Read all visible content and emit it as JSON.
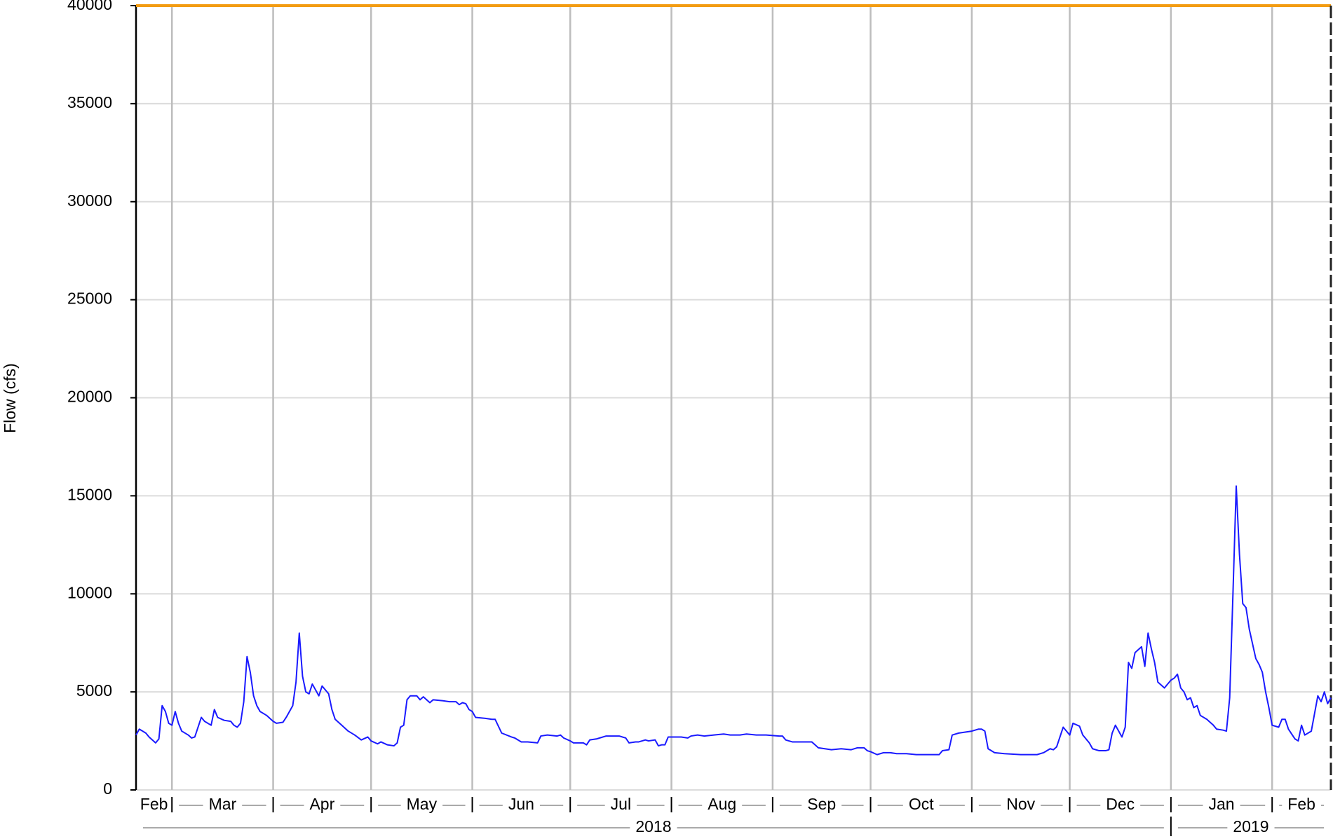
{
  "chart_data": {
    "type": "line",
    "ylabel": "Flow (cfs)",
    "xlim": [
      48,
      414
    ],
    "ylim": [
      0,
      40000
    ],
    "yticks": [
      0,
      5000,
      10000,
      15000,
      20000,
      25000,
      30000,
      35000,
      40000
    ],
    "xticks": [
      {
        "value": 31,
        "label": "Feb"
      },
      {
        "value": 59,
        "label": "Mar"
      },
      {
        "value": 90,
        "label": "Apr"
      },
      {
        "value": 120,
        "label": "May"
      },
      {
        "value": 151,
        "label": "Jun"
      },
      {
        "value": 181,
        "label": "Jul"
      },
      {
        "value": 212,
        "label": "Aug"
      },
      {
        "value": 243,
        "label": "Sep"
      },
      {
        "value": 273,
        "label": "Oct"
      },
      {
        "value": 304,
        "label": "Nov"
      },
      {
        "value": 334,
        "label": "Dec"
      },
      {
        "value": 365,
        "label": "Jan"
      },
      {
        "value": 396,
        "label": "Feb"
      }
    ],
    "years": [
      {
        "value": 0,
        "label": "2018"
      },
      {
        "value": 365,
        "label": "2019"
      }
    ],
    "grid": true,
    "reference_line": {
      "value": 40000,
      "color": "#f39c12"
    },
    "marker_x": 414,
    "series": [
      {
        "name": "Flow",
        "color": "#1a1aff",
        "x": [
          48,
          49,
          51,
          52,
          54,
          55,
          56,
          57,
          58,
          59,
          60,
          61,
          62,
          64,
          65,
          66,
          68,
          69,
          71,
          72,
          73,
          75,
          77,
          78,
          79,
          80,
          81,
          82,
          83,
          84,
          85,
          86,
          88,
          90,
          91,
          93,
          94,
          96,
          97,
          98,
          99,
          100,
          101,
          102,
          104,
          105,
          107,
          108,
          109,
          111,
          113,
          115,
          117,
          119,
          120,
          122,
          123,
          125,
          127,
          128,
          129,
          130,
          131,
          132,
          134,
          135,
          136,
          138,
          139,
          142,
          144,
          146,
          147,
          148,
          149,
          150,
          151,
          152,
          155,
          157,
          158,
          160,
          163,
          164,
          166,
          168,
          171,
          172,
          174,
          177,
          178,
          179,
          181,
          182,
          185,
          186,
          187,
          189,
          190,
          192,
          194,
          196,
          198,
          199,
          201,
          202,
          204,
          205,
          207,
          208,
          209,
          210,
          211,
          213,
          215,
          217,
          218,
          220,
          222,
          225,
          228,
          230,
          233,
          235,
          238,
          241,
          245,
          246,
          247,
          249,
          251,
          254,
          255,
          257,
          259,
          261,
          264,
          267,
          269,
          271,
          272,
          273,
          275,
          277,
          279,
          281,
          284,
          287,
          291,
          294,
          295,
          297,
          298,
          300,
          302,
          304,
          306,
          307,
          308,
          309,
          311,
          314,
          319,
          324,
          326,
          328,
          329,
          330,
          332,
          334,
          335,
          337,
          338,
          340,
          341,
          343,
          345,
          346,
          347,
          348,
          349,
          350,
          351,
          352,
          353,
          354,
          356,
          357,
          358,
          359,
          360,
          361,
          363,
          365,
          366,
          367,
          368,
          369,
          370,
          371,
          372,
          373,
          374,
          376,
          378,
          379,
          381,
          382,
          383,
          384,
          385,
          386,
          387,
          388,
          389,
          391,
          392,
          393,
          394,
          395,
          396,
          398,
          399,
          400,
          401,
          403,
          404,
          405,
          406,
          408,
          409,
          410,
          411,
          412,
          413,
          414
        ],
        "values": [
          2800,
          3100,
          2900,
          2700,
          2400,
          2600,
          4300,
          4000,
          3400,
          3300,
          4000,
          3400,
          3000,
          2800,
          2650,
          2700,
          3700,
          3500,
          3300,
          4100,
          3700,
          3550,
          3500,
          3300,
          3200,
          3400,
          4500,
          6800,
          6000,
          4800,
          4300,
          4000,
          3800,
          3500,
          3400,
          3450,
          3700,
          4300,
          5500,
          8000,
          5800,
          5000,
          4900,
          5400,
          4800,
          5300,
          4900,
          4100,
          3600,
          3300,
          3000,
          2800,
          2550,
          2700,
          2500,
          2350,
          2450,
          2300,
          2250,
          2400,
          3200,
          3300,
          4600,
          4800,
          4800,
          4600,
          4750,
          4450,
          4600,
          4550,
          4500,
          4500,
          4350,
          4450,
          4400,
          4100,
          4000,
          3700,
          3650,
          3600,
          3600,
          2900,
          2700,
          2650,
          2450,
          2450,
          2400,
          2750,
          2800,
          2750,
          2800,
          2650,
          2500,
          2400,
          2400,
          2300,
          2550,
          2600,
          2650,
          2750,
          2750,
          2750,
          2650,
          2400,
          2450,
          2450,
          2550,
          2500,
          2550,
          2250,
          2300,
          2300,
          2700,
          2700,
          2700,
          2650,
          2750,
          2800,
          2750,
          2800,
          2850,
          2800,
          2800,
          2850,
          2800,
          2800,
          2750,
          2750,
          2550,
          2450,
          2450,
          2450,
          2450,
          2150,
          2100,
          2050,
          2100,
          2050,
          2150,
          2150,
          2000,
          1950,
          1800,
          1900,
          1900,
          1850,
          1850,
          1800,
          1800,
          1800,
          2000,
          2050,
          2800,
          2900,
          2950,
          3000,
          3100,
          3100,
          3000,
          2100,
          1900,
          1850,
          1800,
          1800,
          1900,
          2100,
          2050,
          2200,
          3200,
          2800,
          3400,
          3250,
          2800,
          2400,
          2100,
          2000,
          2000,
          2050,
          2900,
          3300,
          3000,
          2700,
          3200,
          6500,
          6200,
          7000,
          7300,
          6300,
          8000,
          7200,
          6500,
          5500,
          5200,
          5600,
          5700,
          5900,
          5200,
          5000,
          4600,
          4700,
          4200,
          4300,
          3800,
          3600,
          3300,
          3100,
          3050,
          3000,
          4700,
          10000,
          15500,
          12000,
          9500,
          9300,
          8200,
          6700,
          6400,
          6000,
          5000,
          4200,
          3300,
          3200,
          3600,
          3600,
          3100,
          2600,
          2500,
          3300,
          2800,
          3000,
          3900,
          4800,
          4500,
          5000,
          4400,
          4700
        ]
      }
    ]
  }
}
